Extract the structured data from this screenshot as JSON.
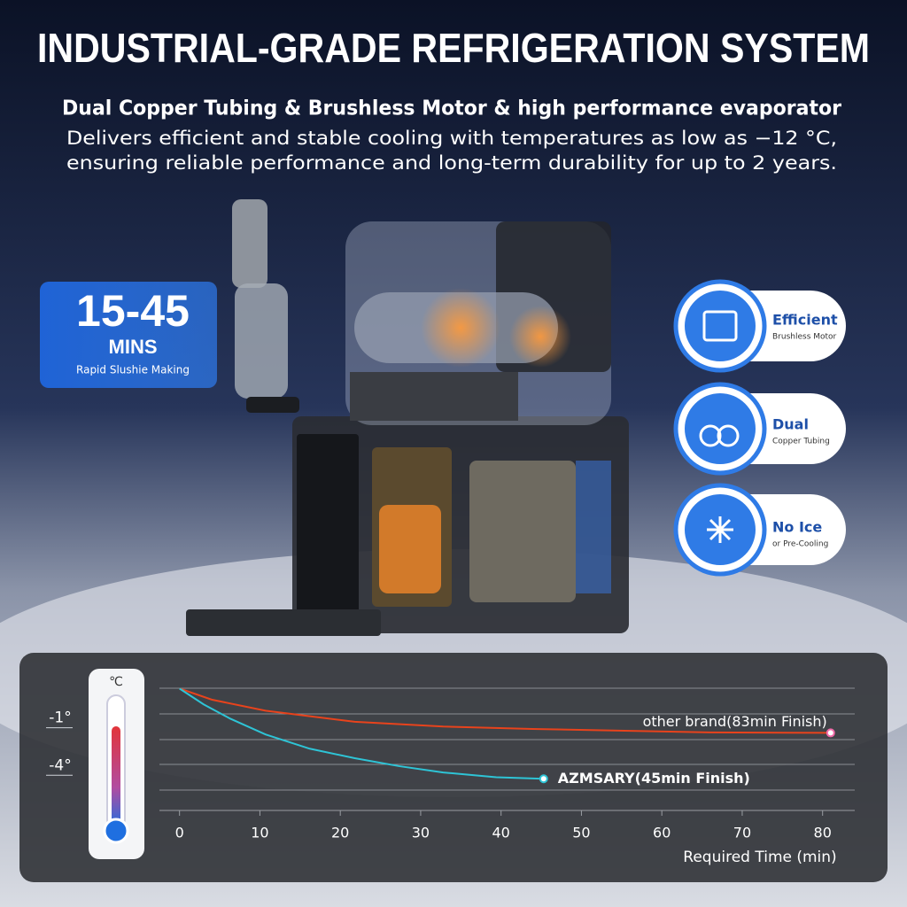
{
  "title": "INDUSTRIAL-GRADE REFRIGERATION SYSTEM",
  "subtitle": "Dual Copper Tubing & Brushless Motor & high performance evaporator",
  "description": [
    "Delivers efficient and stable cooling with temperatures as low as −12 °C,",
    "ensuring reliable performance and long-term durability for up to 2 years."
  ],
  "badge": {
    "number": "15-45",
    "unit": "MINS",
    "caption": "Rapid Slushie Making"
  },
  "features": [
    {
      "title": "Efficient",
      "caption": "Brushless Motor"
    },
    {
      "title": "Dual",
      "caption": "Copper Tubing"
    },
    {
      "title": "No Ice",
      "caption": "or Pre-Cooling"
    }
  ],
  "thermometer_unit": "℃",
  "chart_data": {
    "type": "line",
    "xlabel": "Required Time (min)",
    "xlim": [
      -2.5,
      84
    ],
    "xticks": [
      0,
      10,
      20,
      30,
      40,
      50,
      60,
      70,
      80
    ],
    "ylim": [
      -6,
      2
    ],
    "yticks": [
      {
        "value": -1,
        "label": "-1°"
      },
      {
        "value": -4,
        "label": "-4°"
      }
    ],
    "series": [
      {
        "name": "other brand(83min Finish)",
        "color": "#e8431c",
        "x": [
          0,
          4,
          10.7,
          21.8,
          32.8,
          43.9,
          66,
          81
        ],
        "values": [
          1.7,
          1.0,
          0.3,
          -0.4,
          -0.7,
          -0.85,
          -1.07,
          -1.1
        ]
      },
      {
        "name": "AZMSARY(45min Finish)",
        "color": "#2ec4d6",
        "x": [
          0,
          3,
          6.3,
          10.7,
          16.2,
          21.8,
          27.3,
          32.8,
          39.4,
          45.3
        ],
        "values": [
          1.7,
          0.7,
          -0.2,
          -1.2,
          -2.1,
          -2.7,
          -3.2,
          -3.6,
          -3.9,
          -4.0
        ]
      }
    ]
  }
}
